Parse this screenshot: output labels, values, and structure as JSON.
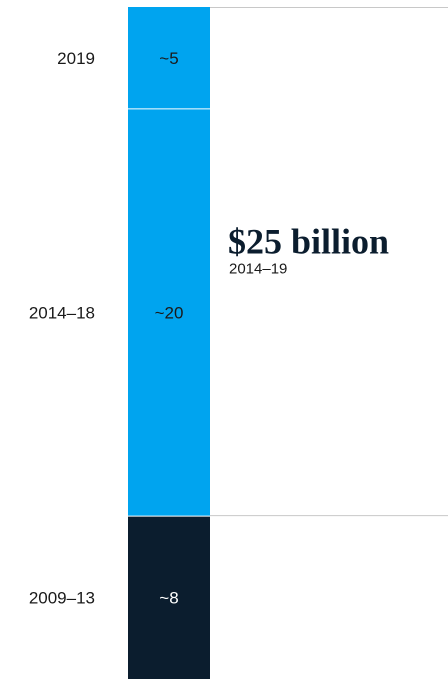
{
  "chart_data": {
    "type": "bar",
    "orientation": "stacked-vertical",
    "categories": [
      "2009–13",
      "2014–18",
      "2019"
    ],
    "values": [
      8,
      20,
      5
    ],
    "value_labels": [
      "~8",
      "~20",
      "~5"
    ],
    "colors": {
      "2009–13": "#0b1d2e",
      "2014–18": "#00a4ef",
      "2019": "#00a4ef"
    },
    "label_colors": {
      "2009–13": "#ffffff",
      "2014–18": "#1a1a1a",
      "2019": "#1a1a1a"
    },
    "title": "",
    "xlabel": "",
    "ylabel": "",
    "annotations": [
      {
        "value": "$25 billion",
        "period": "2014–19",
        "spans": [
          "2014–18",
          "2019"
        ]
      }
    ],
    "grid": false,
    "legend": "none"
  }
}
